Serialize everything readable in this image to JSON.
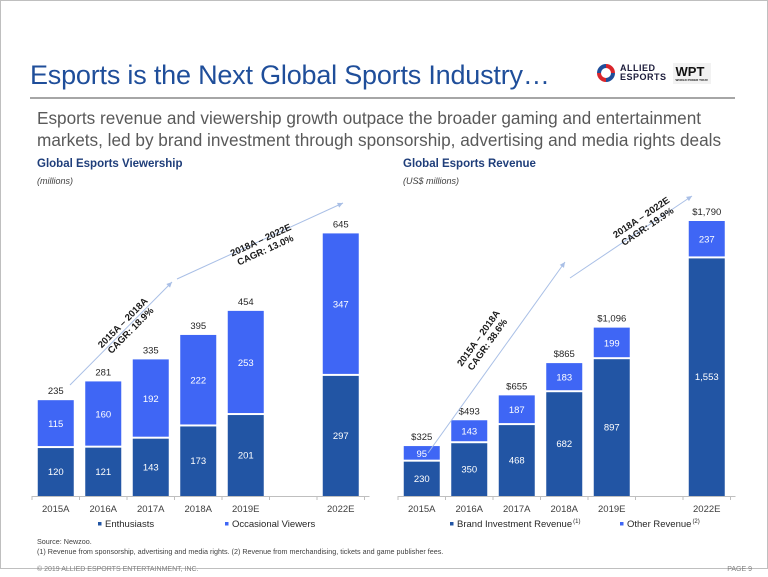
{
  "header": {
    "title": "Esports is the Next Global Sports Industry…",
    "logo_allied_line1": "ALLIED",
    "logo_allied_line2": "ESPORTS",
    "logo_wpt": "WPT",
    "logo_wpt_sub": "WORLD POKER TOUR"
  },
  "subtitle": "Esports revenue and viewership growth outpace the broader gaming and entertainment markets, led by brand investment through sponsorship, advertising and media rights deals",
  "colors": {
    "dark_series": "#2255a4",
    "light_series": "#3f66f5",
    "arrow": "#a9bfe6",
    "title": "#1f4e9a"
  },
  "chart_data": [
    {
      "type": "bar",
      "stacked": true,
      "title": "Global Esports Viewership",
      "subtitle": "(millions)",
      "categories": [
        "2015A",
        "2016A",
        "2017A",
        "2018A",
        "2019E",
        "",
        "2022E"
      ],
      "series": [
        {
          "name": "Enthusiasts",
          "values": [
            120,
            121,
            143,
            173,
            201,
            null,
            297
          ]
        },
        {
          "name": "Occasional Viewers",
          "values": [
            115,
            160,
            192,
            222,
            253,
            null,
            347
          ]
        }
      ],
      "totals": [
        "235",
        "281",
        "335",
        "395",
        "454",
        "",
        "645"
      ],
      "ylim": [
        0,
        645
      ],
      "legend": "bottom",
      "annotations": [
        {
          "line1": "2015A – 2018A",
          "line2": "CAGR: 18.9%"
        },
        {
          "line1": "2018A – 2022E",
          "line2": "CAGR: 13.0%"
        }
      ]
    },
    {
      "type": "bar",
      "stacked": true,
      "title": "Global Esports Revenue",
      "subtitle": "(US$ millions)",
      "categories": [
        "2015A",
        "2016A",
        "2017A",
        "2018A",
        "2019E",
        "",
        "2022E"
      ],
      "series": [
        {
          "name": "Brand Investment Revenue",
          "footnote": "(1)",
          "values": [
            230,
            350,
            468,
            682,
            897,
            null,
            1553
          ]
        },
        {
          "name": "Other Revenue",
          "footnote": "(2)",
          "values": [
            95,
            143,
            187,
            183,
            199,
            null,
            237
          ]
        }
      ],
      "totals": [
        "$325",
        "$493",
        "$655",
        "$865",
        "$1,096",
        "",
        "$1,790"
      ],
      "value_labels": [
        [
          "230",
          "350",
          "468",
          "682",
          "897",
          "",
          "1,553"
        ],
        [
          "95",
          "143",
          "187",
          "183",
          "199",
          "",
          "237"
        ]
      ],
      "ylim": [
        0,
        1790
      ],
      "legend": "bottom",
      "annotations": [
        {
          "line1": "2015A – 2018A",
          "line2": "CAGR: 38.6%"
        },
        {
          "line1": "2018A – 2022E",
          "line2": "CAGR: 19.9%"
        }
      ]
    }
  ],
  "footer": {
    "source": "Source: Newzoo.",
    "notes": "(1) Revenue from sponsorship, advertising and media rights. (2) Revenue from merchandising, tickets and game publisher fees.",
    "copyright": "© 2019 ALLIED ESPORTS ENTERTAINMENT, INC.",
    "page": "PAGE 9"
  }
}
